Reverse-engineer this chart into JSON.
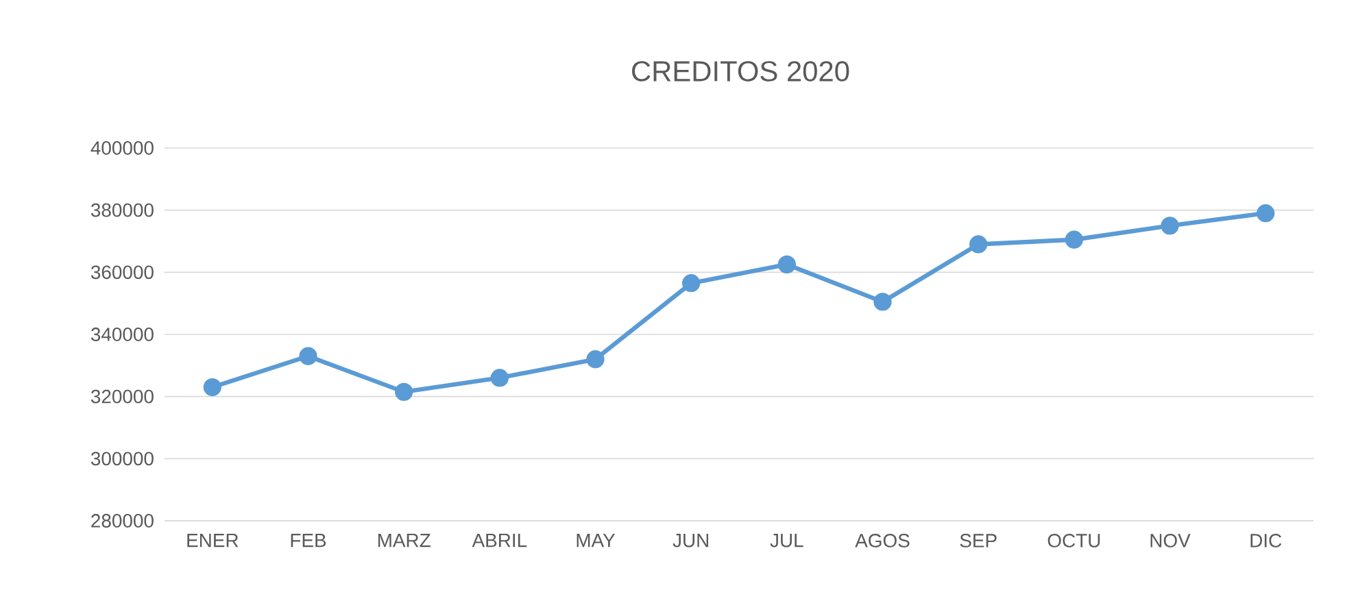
{
  "chart_data": {
    "type": "line",
    "title": "CREDITOS 2020",
    "categories": [
      "ENER",
      "FEB",
      "MARZ",
      "ABRIL",
      "MAY",
      "JUN",
      "JUL",
      "AGOS",
      "SEP",
      "OCTU",
      "NOV",
      "DIC"
    ],
    "values": [
      323000,
      333000,
      321500,
      326000,
      332000,
      356500,
      362500,
      350500,
      369000,
      370500,
      375000,
      379000
    ],
    "color": "#5b9bd5",
    "ylim": [
      280000,
      400000
    ],
    "yticks": [
      280000,
      300000,
      320000,
      340000,
      360000,
      380000,
      400000
    ],
    "grid": "y",
    "marker": "circle",
    "line_style": "solid"
  }
}
